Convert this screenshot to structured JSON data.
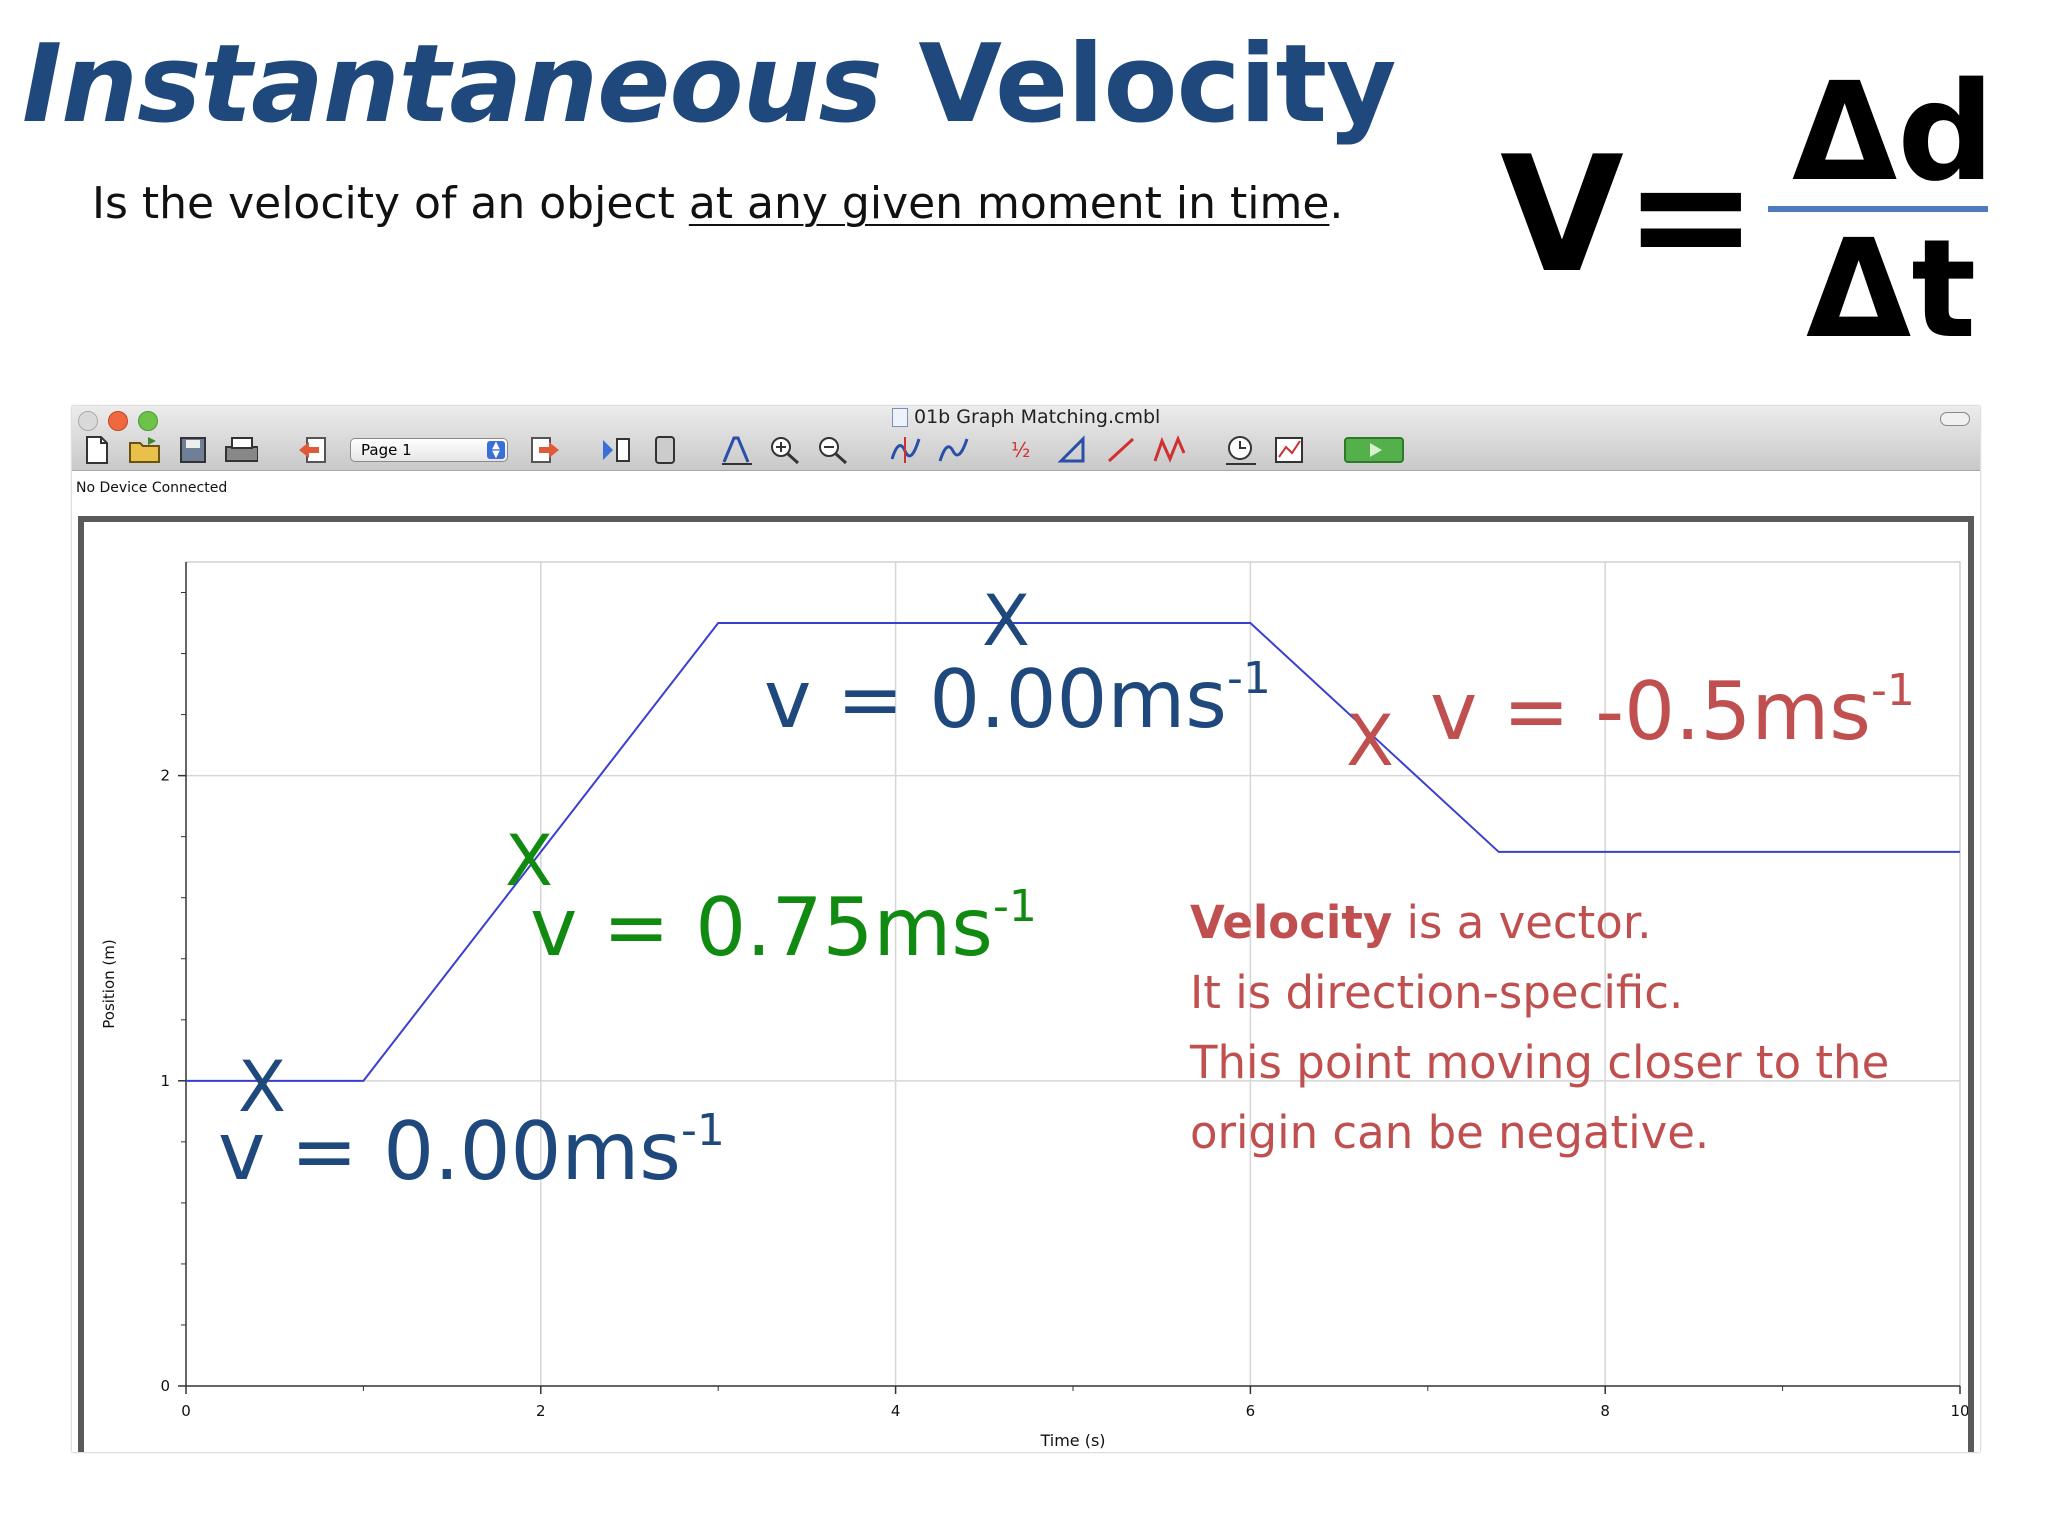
{
  "slide": {
    "title_italic": "Instantaneous",
    "title_rest": "Velocity",
    "subtitle_pre": "Is the velocity of an object ",
    "subtitle_underlined": "at any given moment in time",
    "subtitle_post": ".",
    "formula": {
      "lhs": "V=",
      "numerator": "Δd",
      "denominator": "Δt"
    }
  },
  "app": {
    "window_title": "01b Graph Matching.cmbl",
    "page_select": "Page 1",
    "status": "No Device Connected",
    "toolbar_icons": [
      "new-file-icon",
      "open-folder-icon",
      "save-icon",
      "print-icon",
      "back-page-icon",
      "page-select",
      "forward-page-icon",
      "data-browser-icon",
      "device-icon",
      "autoscale-icon",
      "zoom-in-icon",
      "zoom-out-icon",
      "examine-icon",
      "tangent-icon",
      "integral-icon",
      "stats-icon",
      "linear-fit-icon",
      "curve-fit-icon",
      "data-collection-icon",
      "strip-chart-icon",
      "collect-button"
    ]
  },
  "chart_data": {
    "type": "line",
    "xlabel": "Time (s)",
    "ylabel": "Position (m)",
    "xlim": [
      0,
      10
    ],
    "ylim": [
      0,
      2.7
    ],
    "x_ticks": [
      "0",
      "2",
      "4",
      "6",
      "8",
      "10"
    ],
    "y_ticks": [
      "0",
      "1",
      "2"
    ],
    "grid": true,
    "series": [
      {
        "x": [
          0,
          1,
          3,
          6,
          7.4,
          10
        ],
        "y": [
          1.0,
          1.0,
          2.5,
          2.5,
          1.75,
          1.75
        ],
        "color": "#3b3fd0"
      }
    ]
  },
  "annotations": {
    "mark": "X",
    "v1": {
      "text": "v = 0.00ms",
      "sup": "-1"
    },
    "v2": {
      "text": "v = 0.75ms",
      "sup": "-1"
    },
    "v3": {
      "text": "v = 0.00ms",
      "sup": "-1"
    },
    "v4": {
      "text": "v = -0.5ms",
      "sup": "-1"
    },
    "note_bold": "Velocity",
    "note_line1_rest": " is a vector.",
    "note_line2": "It is direction-specific.",
    "note_line3": "This point moving closer to the",
    "note_line4": "origin can be negative."
  },
  "colors": {
    "title": "#1f487c",
    "green": "#118a11",
    "red": "#c04f4f",
    "line": "#3b3fd0"
  }
}
